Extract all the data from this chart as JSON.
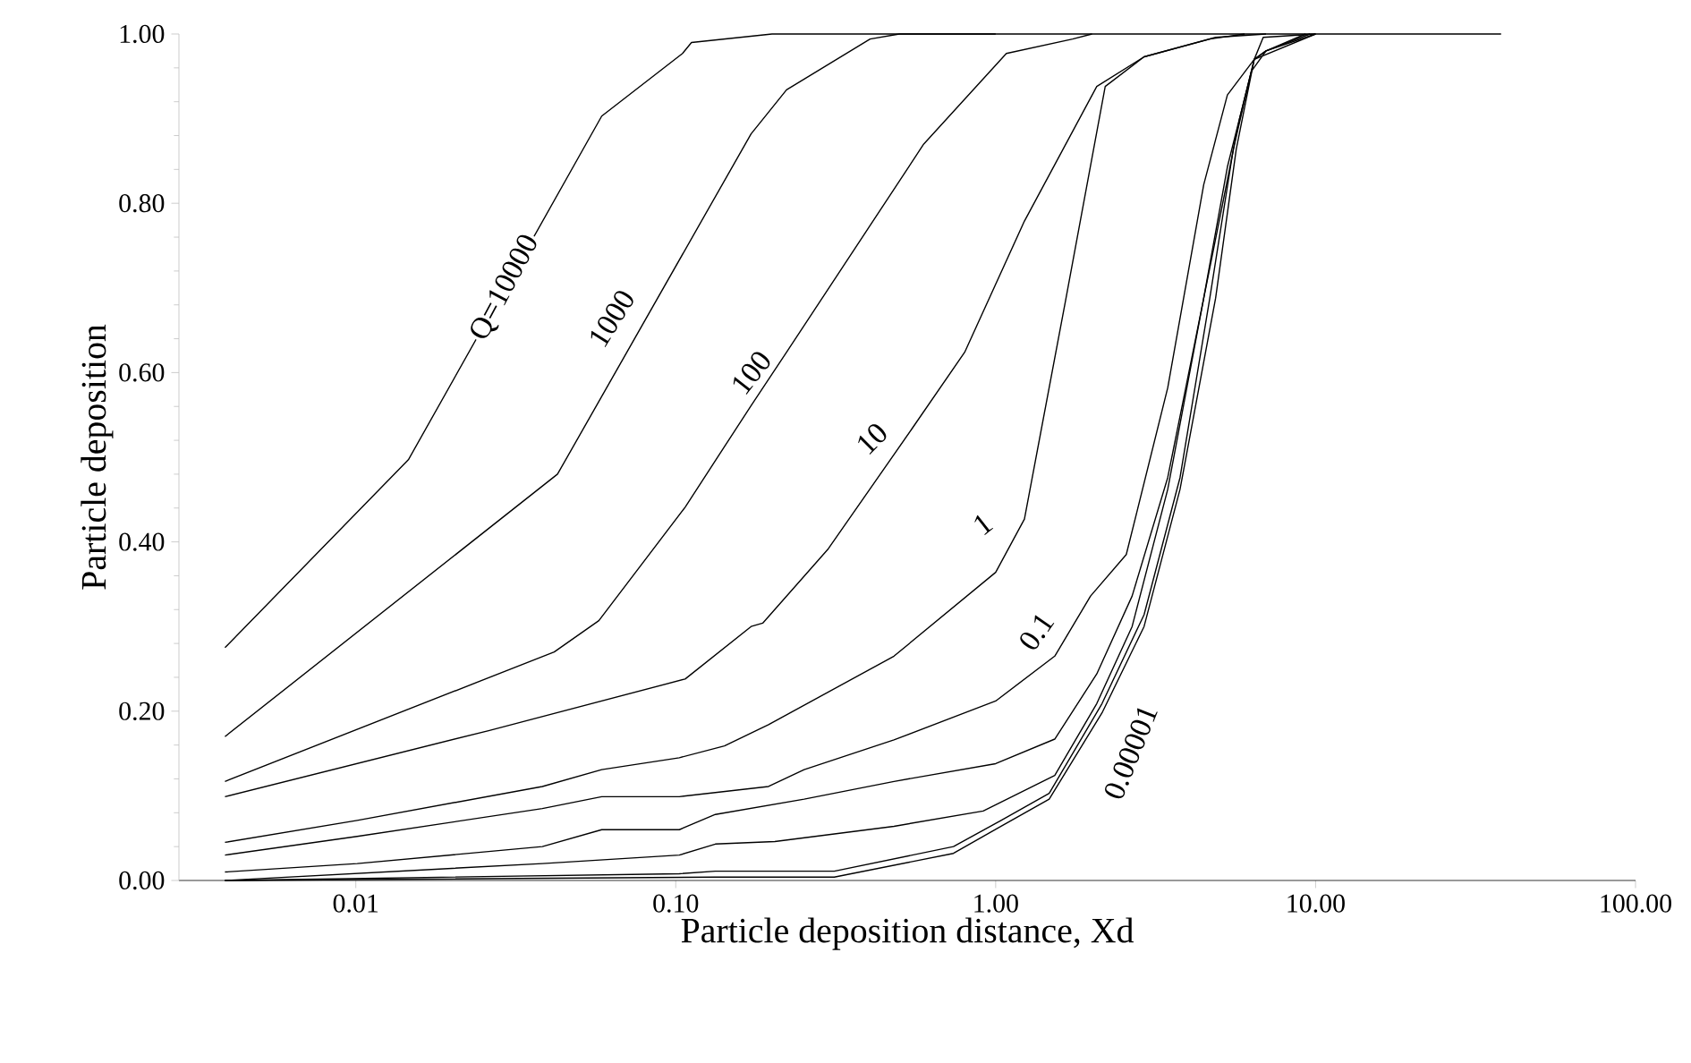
{
  "chart_data": {
    "type": "line",
    "xlabel": "Particle deposition distance, Xd",
    "ylabel": "Particle deposition",
    "log": "x",
    "xlim": [
      0.0028,
      100
    ],
    "ylim": [
      0,
      1
    ],
    "xticks": [
      {
        "value": 0.01,
        "label": "0.01"
      },
      {
        "value": 0.1,
        "label": "0.10"
      },
      {
        "value": 1,
        "label": "1.00"
      },
      {
        "value": 10,
        "label": "10.00"
      },
      {
        "value": 100,
        "label": "100.00"
      }
    ],
    "yticks": [
      {
        "value": 0,
        "label": "0.00"
      },
      {
        "value": 0.2,
        "label": "0.20"
      },
      {
        "value": 0.4,
        "label": "0.40"
      },
      {
        "value": 0.6,
        "label": "0.60"
      },
      {
        "value": 0.8,
        "label": "0.80"
      },
      {
        "value": 1,
        "label": "1.00"
      }
    ],
    "series": [
      {
        "color": "#000000",
        "x": [
          0.0039,
          0.0146,
          0.0587,
          0.105,
          0.112,
          0.2,
          38
        ],
        "values": [
          0.275,
          0.497,
          0.903,
          0.977,
          0.99,
          1.0,
          1.0
        ]
      },
      {
        "color": "#000000",
        "x": [
          0.0039,
          0.0427,
          0.172,
          0.222,
          0.405,
          0.5,
          1
        ],
        "values": [
          0.17,
          0.48,
          0.882,
          0.934,
          0.994,
          1.0,
          1.0
        ]
      },
      {
        "color": "#000000",
        "x": [
          0.0039,
          0.0417,
          0.0575,
          0.107,
          0.172,
          0.222,
          0.596,
          1.08,
          1.74,
          2.0
        ],
        "values": [
          0.117,
          0.27,
          0.307,
          0.441,
          0.561,
          0.624,
          0.87,
          0.977,
          0.994,
          1.0
        ]
      },
      {
        "color": "#000000",
        "x": [
          0.0039,
          0.026,
          0.107,
          0.172,
          0.187,
          0.3,
          0.546,
          0.8,
          1.23,
          2.07,
          2.91,
          4.67,
          6
        ],
        "values": [
          0.099,
          0.177,
          0.238,
          0.3,
          0.304,
          0.392,
          0.533,
          0.624,
          0.779,
          0.938,
          0.973,
          0.994,
          1.0
        ]
      },
      {
        "color": "#000000",
        "x": [
          0.0039,
          0.0101,
          0.0383,
          0.0587,
          0.1026,
          0.142,
          0.195,
          0.481,
          1.0,
          1.23,
          1.65,
          2.2,
          2.91,
          4.87,
          7
        ],
        "values": [
          0.045,
          0.071,
          0.111,
          0.131,
          0.145,
          0.159,
          0.184,
          0.265,
          0.364,
          0.427,
          0.683,
          0.938,
          0.973,
          0.996,
          1.0
        ]
      },
      {
        "color": "#000000",
        "x": [
          0.0039,
          0.0101,
          0.0383,
          0.0587,
          0.1026,
          0.195,
          0.252,
          0.481,
          1.0,
          1.53,
          1.98,
          2.56,
          3.45,
          4.47,
          5.3,
          6.43,
          6.86,
          10
        ],
        "values": [
          0.03,
          0.052,
          0.085,
          0.099,
          0.099,
          0.111,
          0.131,
          0.166,
          0.212,
          0.265,
          0.336,
          0.385,
          0.582,
          0.822,
          0.928,
          0.97,
          0.996,
          1.0
        ]
      },
      {
        "color": "#000000",
        "x": [
          0.0039,
          0.0101,
          0.0383,
          0.0587,
          0.1026,
          0.133,
          0.252,
          0.481,
          1.0,
          1.53,
          2.07,
          2.67,
          3.45,
          4.1,
          4.87,
          5.78,
          6.43,
          10
        ],
        "values": [
          0.01,
          0.02,
          0.04,
          0.06,
          0.06,
          0.078,
          0.096,
          0.117,
          0.138,
          0.167,
          0.244,
          0.336,
          0.476,
          0.617,
          0.758,
          0.899,
          0.97,
          1.0
        ]
      },
      {
        "color": "#000000",
        "x": [
          0.0039,
          0.0383,
          0.1026,
          0.133,
          0.204,
          0.481,
          0.914,
          1.53,
          2.07,
          2.67,
          3.45,
          4.47,
          5.3,
          6.3,
          7,
          9.6
        ],
        "values": [
          0.0,
          0.02,
          0.03,
          0.043,
          0.046,
          0.064,
          0.082,
          0.124,
          0.209,
          0.3,
          0.462,
          0.688,
          0.843,
          0.956,
          0.98,
          1.0
        ]
      },
      {
        "color": "#000000",
        "x": [
          0.0039,
          0.1026,
          0.133,
          0.313,
          0.738,
          1.04,
          1.47,
          2.15,
          2.91,
          3.77,
          4.67,
          5.53,
          6.43,
          7,
          10
        ],
        "values": [
          0.0,
          0.008,
          0.011,
          0.011,
          0.04,
          0.071,
          0.103,
          0.209,
          0.314,
          0.476,
          0.688,
          0.864,
          0.97,
          0.98,
          1.0
        ]
      },
      {
        "color": "#000000",
        "x": [
          0.0039,
          0.133,
          0.313,
          0.738,
          1.04,
          1.47,
          2.15,
          2.91,
          3.77,
          4.87,
          5.65,
          6.43,
          7,
          9.3
        ],
        "values": [
          0.0,
          0.004,
          0.004,
          0.032,
          0.064,
          0.096,
          0.198,
          0.3,
          0.462,
          0.688,
          0.864,
          0.97,
          0.98,
          1.0
        ]
      }
    ],
    "annotations": [
      {
        "text": "Q=10000",
        "x": 0.0293,
        "y": 0.7
      },
      {
        "text": "1000",
        "x": 0.063,
        "y": 0.664
      },
      {
        "text": "100",
        "x": 0.172,
        "y": 0.6
      },
      {
        "text": "10",
        "x": 0.41,
        "y": 0.522
      },
      {
        "text": "1",
        "x": 0.91,
        "y": 0.421
      },
      {
        "text": "0.1",
        "x": 1.34,
        "y": 0.294
      },
      {
        "text": "0.00001",
        "x": 2.15,
        "y": 0.198
      }
    ]
  }
}
